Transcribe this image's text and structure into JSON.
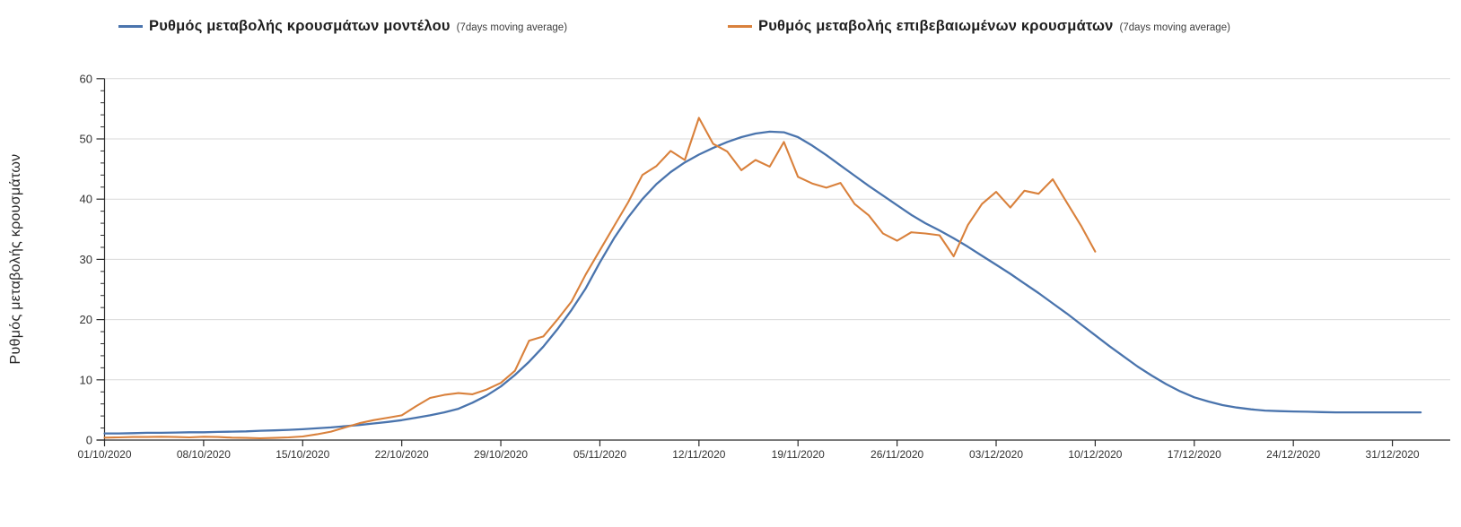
{
  "chart": {
    "legend": {
      "items": [
        {
          "label": "Ρυθμός μεταβολής κρουσμάτων μοντέλου",
          "note": "(7days moving average)"
        },
        {
          "label": "Ρυθμός μεταβολής επιβεβαιωμένων κρουσμάτων",
          "note": "(7days moving average)"
        }
      ]
    }
  },
  "chart_data": {
    "type": "line",
    "title": "",
    "xlabel": "",
    "ylabel": "Ρυθμός μεταβολής κρουσμάτων",
    "ylim": [
      0,
      60
    ],
    "y_ticks": [
      0,
      10,
      20,
      30,
      40,
      50,
      60
    ],
    "y_minor_tick_step": 2,
    "grid": "horizontal",
    "gridline_color": "#d9d9d9",
    "axis_color": "#2b2b2b",
    "tick_label_color": "#333333",
    "legend_position": "top",
    "x_frequency": "daily",
    "x_start_date": "01/10/2020",
    "x_ticks": [
      {
        "day": 0,
        "label": "01/10/2020"
      },
      {
        "day": 7,
        "label": "08/10/2020"
      },
      {
        "day": 14,
        "label": "15/10/2020"
      },
      {
        "day": 21,
        "label": "22/10/2020"
      },
      {
        "day": 28,
        "label": "29/10/2020"
      },
      {
        "day": 35,
        "label": "05/11/2020"
      },
      {
        "day": 42,
        "label": "12/11/2020"
      },
      {
        "day": 49,
        "label": "19/11/2020"
      },
      {
        "day": 56,
        "label": "26/11/2020"
      },
      {
        "day": 63,
        "label": "03/12/2020"
      },
      {
        "day": 70,
        "label": "10/12/2020"
      },
      {
        "day": 77,
        "label": "17/12/2020"
      },
      {
        "day": 84,
        "label": "24/12/2020"
      },
      {
        "day": 91,
        "label": "31/12/2020"
      }
    ],
    "series": [
      {
        "name": "Ρυθμός μεταβολής κρουσμάτων μοντέλου",
        "note": "(7days moving average)",
        "color": "#4a74ad",
        "values": [
          1.1,
          1.1,
          1.15,
          1.2,
          1.2,
          1.25,
          1.3,
          1.3,
          1.35,
          1.4,
          1.45,
          1.55,
          1.6,
          1.7,
          1.8,
          1.95,
          2.1,
          2.3,
          2.5,
          2.75,
          3.0,
          3.3,
          3.7,
          4.1,
          4.6,
          5.2,
          6.2,
          7.4,
          8.9,
          10.8,
          13.0,
          15.5,
          18.4,
          21.6,
          25.2,
          29.5,
          33.5,
          37.0,
          40.0,
          42.5,
          44.5,
          46.1,
          47.4,
          48.5,
          49.5,
          50.3,
          50.9,
          51.2,
          51.1,
          50.3,
          48.9,
          47.3,
          45.6,
          43.9,
          42.2,
          40.6,
          39.0,
          37.4,
          36.0,
          34.8,
          33.5,
          32.1,
          30.6,
          29.1,
          27.6,
          26.0,
          24.4,
          22.7,
          21.0,
          19.2,
          17.4,
          15.6,
          13.9,
          12.2,
          10.7,
          9.3,
          8.1,
          7.1,
          6.4,
          5.8,
          5.4,
          5.1,
          4.9,
          4.8,
          4.75,
          4.7,
          4.65,
          4.6,
          4.6,
          4.6,
          4.6,
          4.6,
          4.6,
          4.6
        ]
      },
      {
        "name": "Ρυθμός μεταβολής επιβεβαιωμένων κρουσμάτων",
        "note": "(7days moving average)",
        "color": "#d9813c",
        "values": [
          0.4,
          0.45,
          0.5,
          0.5,
          0.55,
          0.5,
          0.45,
          0.55,
          0.5,
          0.4,
          0.35,
          0.3,
          0.35,
          0.45,
          0.6,
          0.95,
          1.4,
          2.1,
          2.8,
          3.3,
          3.7,
          4.1,
          5.6,
          7.0,
          7.5,
          7.8,
          7.6,
          8.4,
          9.5,
          11.5,
          16.5,
          17.2,
          20.0,
          23.0,
          27.5,
          31.5,
          35.5,
          39.5,
          44.0,
          45.5,
          48.0,
          46.5,
          53.5,
          49.2,
          47.9,
          44.8,
          46.5,
          45.4,
          49.5,
          43.7,
          42.6,
          41.9,
          42.7,
          39.2,
          37.3,
          34.3,
          33.1,
          34.5,
          34.3,
          34.0,
          30.5,
          35.7,
          39.2,
          41.2,
          38.6,
          41.4,
          40.9,
          43.3,
          39.4,
          35.6,
          31.3
        ]
      }
    ]
  }
}
